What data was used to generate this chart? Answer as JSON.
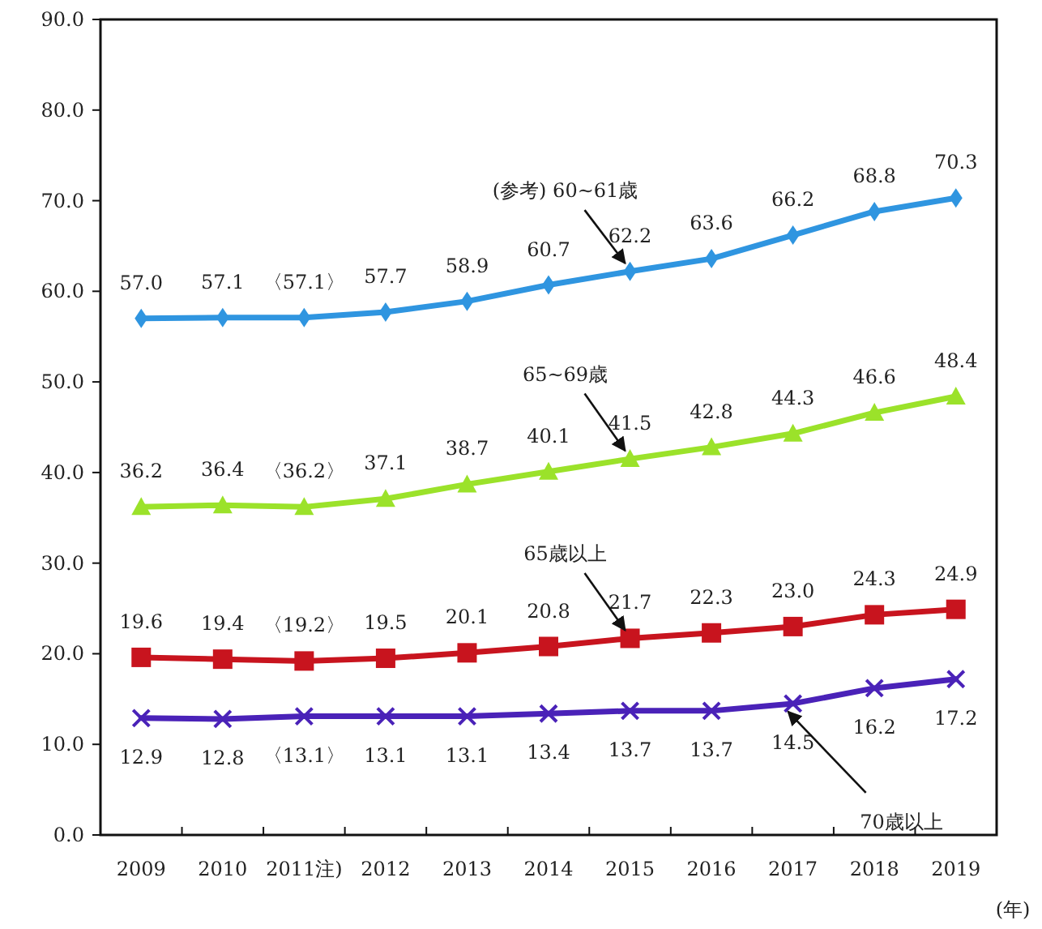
{
  "chart_data": {
    "type": "line",
    "xlabel": "(年)",
    "categories": [
      "2009",
      "2010",
      "2011注)",
      "2012",
      "2013",
      "2014",
      "2015",
      "2016",
      "2017",
      "2018",
      "2019"
    ],
    "ylim": [
      0,
      90
    ],
    "yticks": [
      {
        "value": 0,
        "label": "0.0"
      },
      {
        "value": 10,
        "label": "10.0"
      },
      {
        "value": 20,
        "label": "20.0"
      },
      {
        "value": 30,
        "label": "30.0"
      },
      {
        "value": 40,
        "label": "40.0"
      },
      {
        "value": 50,
        "label": "50.0"
      },
      {
        "value": 60,
        "label": "60.0"
      },
      {
        "value": 70,
        "label": "70.0"
      },
      {
        "value": 80,
        "label": "80.0"
      },
      {
        "value": 90,
        "label": "90.0"
      }
    ],
    "grid": false,
    "series": [
      {
        "name": "(参考) 60~61歳",
        "color": "#2f95e0",
        "marker": "diamond",
        "values": [
          57.0,
          57.1,
          57.1,
          57.7,
          58.9,
          60.7,
          62.2,
          63.6,
          66.2,
          68.8,
          70.3
        ],
        "value_labels": [
          "57.0",
          "57.1",
          "〈57.1〉",
          "57.7",
          "58.9",
          "60.7",
          "62.2",
          "63.6",
          "66.2",
          "68.8",
          "70.3"
        ]
      },
      {
        "name": "65~69歳",
        "color": "#9be22a",
        "marker": "triangle",
        "values": [
          36.2,
          36.4,
          36.2,
          37.1,
          38.7,
          40.1,
          41.5,
          42.8,
          44.3,
          46.6,
          48.4
        ],
        "value_labels": [
          "36.2",
          "36.4",
          "〈36.2〉",
          "37.1",
          "38.7",
          "40.1",
          "41.5",
          "42.8",
          "44.3",
          "46.6",
          "48.4"
        ]
      },
      {
        "name": "65歳以上",
        "color": "#c8141e",
        "marker": "square",
        "values": [
          19.6,
          19.4,
          19.2,
          19.5,
          20.1,
          20.8,
          21.7,
          22.3,
          23.0,
          24.3,
          24.9
        ],
        "value_labels": [
          "19.6",
          "19.4",
          "〈19.2〉",
          "19.5",
          "20.1",
          "20.8",
          "21.7",
          "22.3",
          "23.0",
          "24.3",
          "24.9"
        ]
      },
      {
        "name": "70歳以上",
        "color": "#4a22b8",
        "marker": "cross",
        "values": [
          12.9,
          12.8,
          13.1,
          13.1,
          13.1,
          13.4,
          13.7,
          13.7,
          14.5,
          16.2,
          17.2
        ],
        "value_labels": [
          "12.9",
          "12.8",
          "〈13.1〉",
          "13.1",
          "13.1",
          "13.4",
          "13.7",
          "13.7",
          "14.5",
          "16.2",
          "17.2"
        ]
      }
    ]
  }
}
